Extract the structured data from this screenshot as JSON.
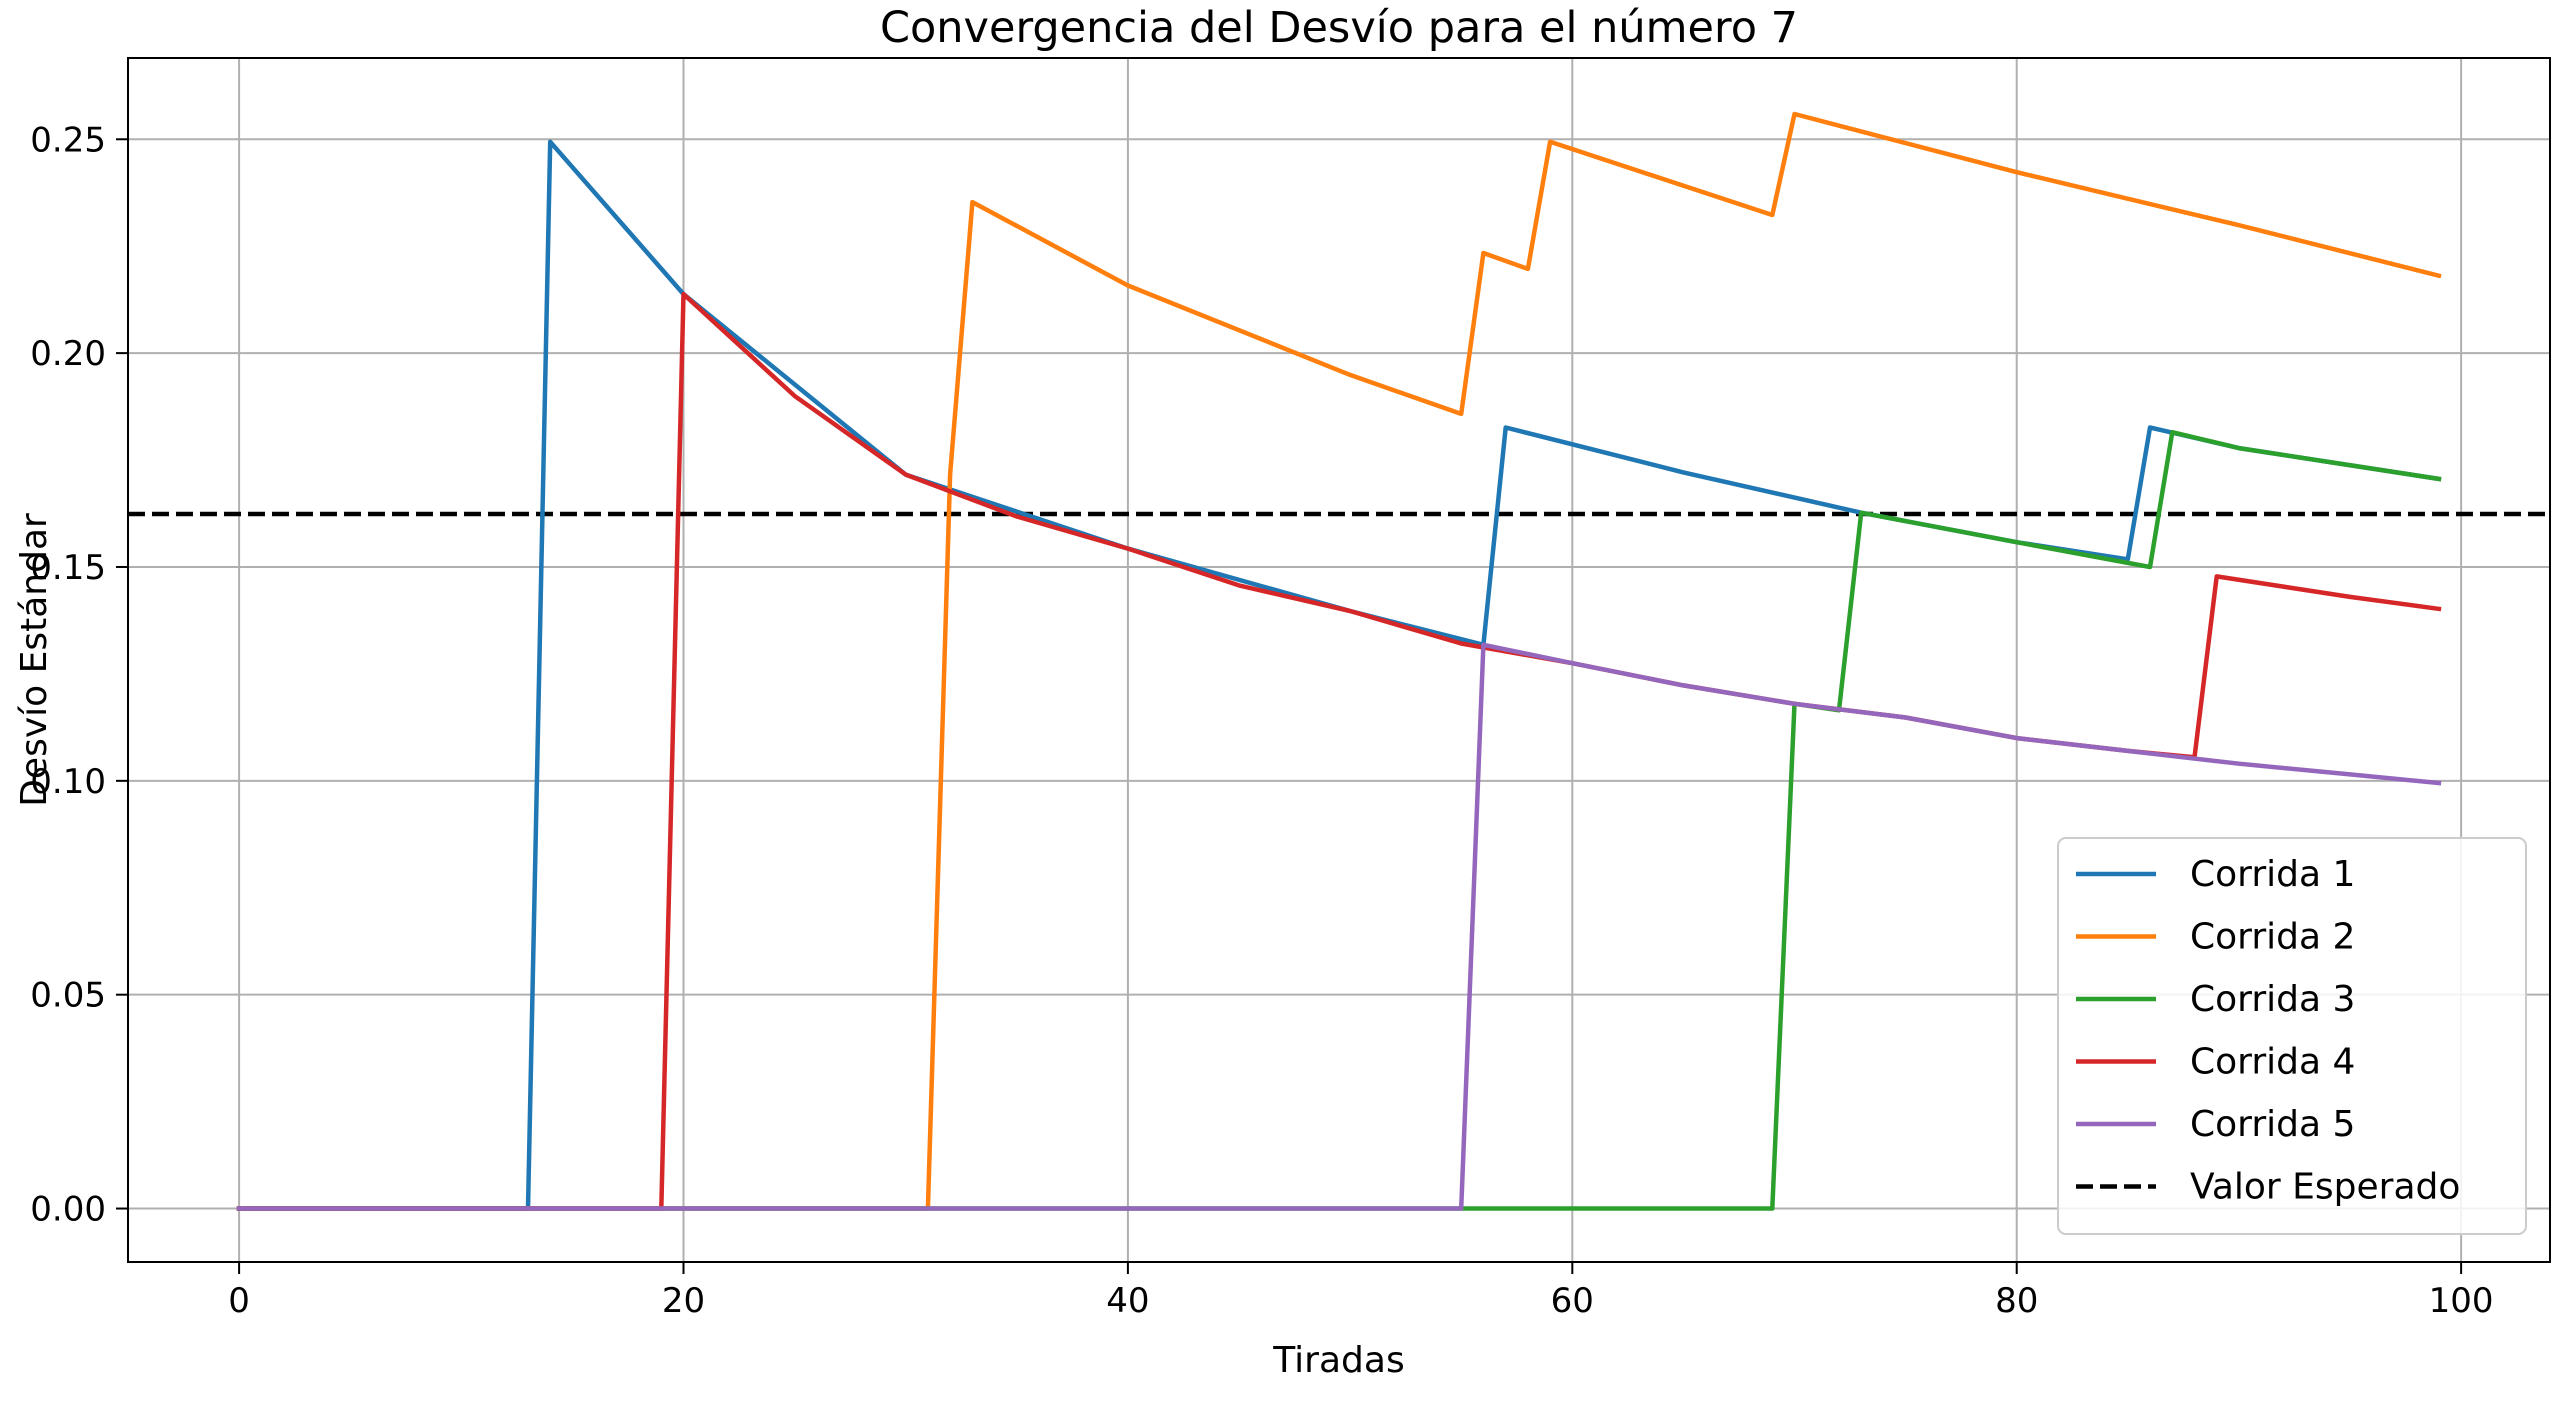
{
  "chart_data": {
    "type": "line",
    "title": "Convergencia del Desvío para el número 7",
    "xlabel": "Tiradas",
    "ylabel": "Desvío Estándar",
    "xlim": [
      -5,
      104
    ],
    "ylim": [
      -0.0125,
      0.269
    ],
    "xticks": [
      0,
      20,
      40,
      60,
      80,
      100
    ],
    "xtick_labels": [
      "0",
      "20",
      "40",
      "60",
      "80",
      "100"
    ],
    "yticks": [
      0.0,
      0.05,
      0.1,
      0.15,
      0.2,
      0.25
    ],
    "ytick_labels": [
      "0.00",
      "0.05",
      "0.10",
      "0.15",
      "0.20",
      "0.25"
    ],
    "grid": true,
    "legend_position": "lower-right",
    "series": [
      {
        "name": "Corrida 1",
        "color": "#1f77b4",
        "x": [
          0,
          13,
          14,
          20,
          30,
          40,
          50,
          56,
          57,
          65,
          73,
          80,
          85,
          86,
          90,
          99
        ],
        "y": [
          0,
          0,
          0.2494,
          0.2138,
          0.1716,
          0.1543,
          0.1397,
          0.1318,
          0.1826,
          0.1721,
          0.1627,
          0.1558,
          0.1518,
          0.1826,
          0.1778,
          0.1706
        ]
      },
      {
        "name": "Corrida 2",
        "color": "#ff7f0e",
        "x": [
          0,
          31,
          32,
          33,
          40,
          50,
          55,
          56,
          58,
          59,
          69,
          70,
          80,
          90,
          99
        ],
        "y": [
          0,
          0,
          0.1716,
          0.2353,
          0.2158,
          0.1949,
          0.1858,
          0.2234,
          0.2197,
          0.2494,
          0.2323,
          0.2559,
          0.2423,
          0.2299,
          0.2181
        ]
      },
      {
        "name": "Corrida 3",
        "color": "#2ca02c",
        "x": [
          0,
          69,
          70,
          72,
          73,
          80,
          86,
          87,
          90,
          99
        ],
        "y": [
          0,
          0,
          0.118,
          0.1165,
          0.1627,
          0.1558,
          0.15,
          0.1815,
          0.1778,
          0.1706
        ]
      },
      {
        "name": "Corrida 4",
        "color": "#d62728",
        "x": [
          0,
          19,
          20,
          25,
          30,
          35,
          40,
          45,
          50,
          55,
          60,
          65,
          70,
          75,
          80,
          85,
          88,
          89,
          95,
          99
        ],
        "y": [
          0,
          0,
          0.2138,
          0.19,
          0.1716,
          0.1618,
          0.1543,
          0.1457,
          0.1397,
          0.1321,
          0.1275,
          0.1223,
          0.118,
          0.1148,
          0.11,
          0.107,
          0.1055,
          0.1478,
          0.143,
          0.1402
        ]
      },
      {
        "name": "Corrida 5",
        "color": "#9467bd",
        "x": [
          0,
          55,
          56,
          60,
          65,
          70,
          75,
          80,
          85,
          90,
          95,
          99
        ],
        "y": [
          0,
          0,
          0.1318,
          0.1275,
          0.1223,
          0.118,
          0.1148,
          0.11,
          0.107,
          0.104,
          0.1015,
          0.0995
        ]
      }
    ],
    "reference_line": {
      "name": "Valor Esperado",
      "y": 0.1624,
      "style": "dashed",
      "color": "#000000"
    }
  }
}
